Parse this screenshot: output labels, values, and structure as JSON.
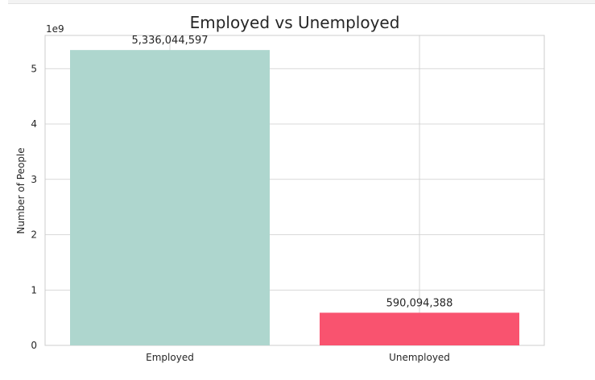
{
  "chart_data": {
    "type": "bar",
    "title": "Employed vs Unemployed",
    "xlabel": "",
    "ylabel": "Number of People",
    "categories": [
      "Employed",
      "Unemployed"
    ],
    "values": [
      5336044597,
      590094388
    ],
    "value_labels": [
      "5,336,044,597",
      "590,094,388"
    ],
    "colors": [
      "#aed6ce",
      "#f9536f"
    ],
    "ylim": [
      0,
      5600000000
    ],
    "y_ticks": [
      0,
      1000000000,
      2000000000,
      3000000000,
      4000000000,
      5000000000
    ],
    "y_tick_labels": [
      "0",
      "1",
      "2",
      "3",
      "4",
      "5"
    ],
    "y_offset_label": "1e9",
    "grid": true
  }
}
